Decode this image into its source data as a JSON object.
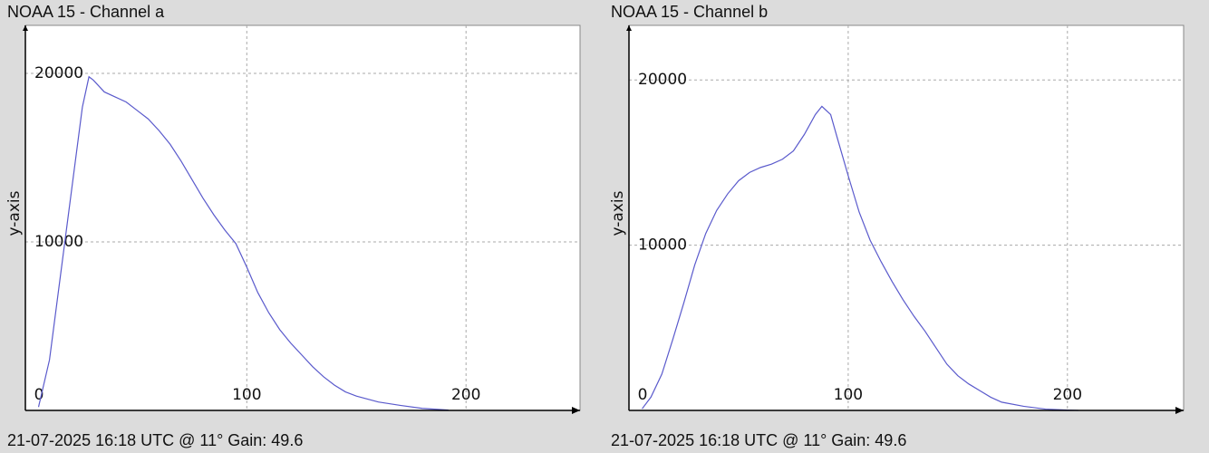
{
  "chart_data": [
    {
      "type": "line",
      "title": "NOAA 15 - Channel a",
      "y_label": "y-axis",
      "footer": "21-07-2025 16:18 UTC @ 11° Gain: 49.6",
      "color": "#5a5acc",
      "grid": true,
      "xlim": [
        -1,
        252
      ],
      "ylim": [
        0,
        22850
      ],
      "xticks": [
        0,
        100,
        200
      ],
      "yticks": [
        10000,
        20000
      ],
      "x": [
        5,
        10,
        15,
        20,
        25,
        28,
        30,
        35,
        40,
        45,
        50,
        55,
        60,
        65,
        70,
        75,
        80,
        85,
        90,
        95,
        100,
        105,
        110,
        115,
        120,
        125,
        130,
        135,
        140,
        145,
        150,
        160,
        170,
        180,
        192
      ],
      "values": [
        200,
        3000,
        8000,
        13000,
        18000,
        19800,
        19600,
        18900,
        18600,
        18300,
        17800,
        17300,
        16600,
        15800,
        14800,
        13700,
        12600,
        11600,
        10700,
        9900,
        8500,
        7000,
        5800,
        4800,
        4000,
        3300,
        2600,
        2000,
        1500,
        1100,
        850,
        500,
        300,
        120,
        20
      ]
    },
    {
      "type": "line",
      "title": "NOAA 15 - Channel b",
      "y_label": "y-axis",
      "footer": "21-07-2025 16:18 UTC @ 11° Gain: 49.6",
      "color": "#5a5acc",
      "grid": true,
      "xlim": [
        0,
        253
      ],
      "ylim": [
        0,
        23300
      ],
      "xticks": [
        0,
        100,
        200
      ],
      "yticks": [
        10000,
        20000
      ],
      "x": [
        6,
        10,
        15,
        20,
        25,
        30,
        35,
        40,
        45,
        50,
        55,
        60,
        65,
        70,
        75,
        80,
        85,
        88,
        92,
        95,
        100,
        105,
        110,
        115,
        120,
        125,
        130,
        135,
        140,
        145,
        150,
        155,
        160,
        165,
        170,
        180,
        190,
        200,
        205
      ],
      "values": [
        100,
        800,
        2200,
        4300,
        6500,
        8800,
        10700,
        12100,
        13100,
        13900,
        14400,
        14700,
        14900,
        15200,
        15700,
        16700,
        17900,
        18400,
        17900,
        16500,
        14200,
        12000,
        10300,
        9000,
        7800,
        6700,
        5700,
        4800,
        3800,
        2800,
        2100,
        1600,
        1200,
        800,
        500,
        250,
        80,
        20,
        0
      ]
    }
  ]
}
